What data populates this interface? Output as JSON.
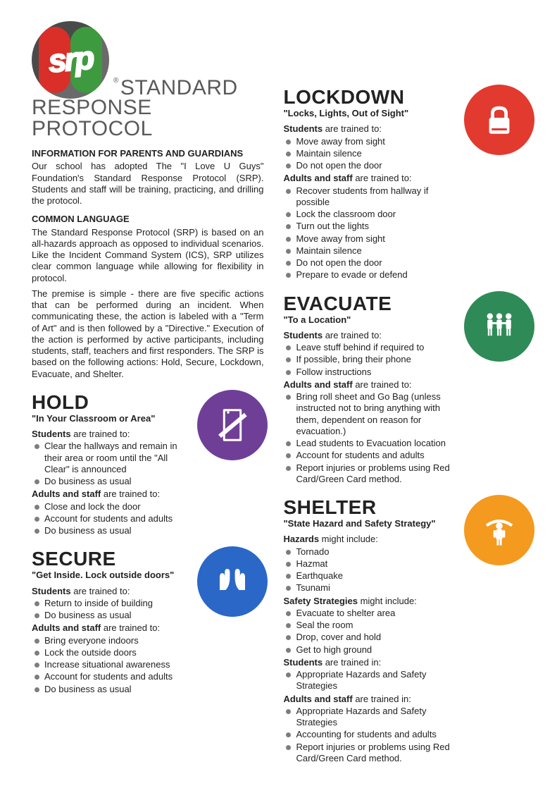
{
  "header": {
    "logo_text": "srp",
    "registered": "®",
    "title_line1": "STANDARD",
    "title_line2": "RESPONSE PROTOCOL"
  },
  "intro": {
    "heading1": "INFORMATION FOR PARENTS AND GUARDIANS",
    "para1": "Our school has adopted The \"I Love U Guys\" Foundation's Standard Response Protocol (SRP). Students and staff will be training, practicing, and drilling the protocol.",
    "heading2": "COMMON LANGUAGE",
    "para2": "The Standard Response Protocol (SRP) is based on an all-hazards approach as opposed to individual scenarios. Like the Incident Command System (ICS), SRP utilizes clear common language while allowing for flexibility in protocol.",
    "para3": "The premise is simple - there are five specific actions that can be performed during an incident. When communicating these, the action is labeled with a \"Term of Art\" and is then followed by a \"Directive.\" Execution of the action is performed by active participants, including students, staff, teachers and first responders. The SRP is based on the following actions: Hold, Secure, Lockdown, Evacuate, and Shelter."
  },
  "colors": {
    "hold": "#6f3f98",
    "secure": "#2b67c7",
    "lockdown": "#e23a2e",
    "evacuate": "#2e8b57",
    "shelter": "#f39a1f",
    "bullet": "#7d7d7d",
    "title_gray": "#5a5a5a"
  },
  "actions": {
    "hold": {
      "title": "HOLD",
      "directive": "\"In Your Classroom or Area\"",
      "groups": [
        {
          "label_bold": "Students",
          "label_rest": " are trained to:",
          "items": [
            "Clear the hallways and remain in their area or room until the \"All Clear\" is announced",
            "Do business as usual"
          ]
        },
        {
          "label_bold": "Adults and staff",
          "label_rest": " are trained to:",
          "items": [
            "Close and lock the door",
            "Account for students and adults",
            "Do business as usual"
          ]
        }
      ]
    },
    "secure": {
      "title": "SECURE",
      "directive": "\"Get Inside. Lock outside doors\"",
      "groups": [
        {
          "label_bold": "Students",
          "label_rest": " are trained to:",
          "items": [
            "Return to inside of building",
            "Do business as usual"
          ]
        },
        {
          "label_bold": "Adults and staff",
          "label_rest": " are trained to:",
          "items": [
            "Bring everyone indoors",
            "Lock the outside doors",
            "Increase situational awareness",
            "Account for students and adults",
            "Do business as usual"
          ]
        }
      ]
    },
    "lockdown": {
      "title": "LOCKDOWN",
      "directive": "\"Locks, Lights, Out of Sight\"",
      "groups": [
        {
          "label_bold": "Students",
          "label_rest": " are trained to:",
          "items": [
            "Move away from sight",
            "Maintain silence",
            "Do not open the door"
          ]
        },
        {
          "label_bold": "Adults and staff",
          "label_rest": " are trained to:",
          "items": [
            "Recover students from hallway if possible",
            "Lock the classroom door",
            "Turn out the lights",
            "Move away from sight",
            "Maintain silence",
            "Do not open the door",
            "Prepare to evade or defend"
          ]
        }
      ]
    },
    "evacuate": {
      "title": "EVACUATE",
      "directive": "\"To a Location\"",
      "groups": [
        {
          "label_bold": "Students",
          "label_rest": " are trained to:",
          "items": [
            "Leave stuff behind if required to",
            "If possible, bring their phone",
            "Follow instructions"
          ]
        },
        {
          "label_bold": "Adults and staff",
          "label_rest": " are trained to:",
          "items": [
            "Bring roll sheet and Go Bag (unless instructed not to bring anything with them, dependent on reason for evacuation.)",
            "Lead students to Evacuation location",
            "Account for students and adults",
            "Report injuries or problems using Red Card/Green Card method."
          ]
        }
      ]
    },
    "shelter": {
      "title": "SHELTER",
      "directive": "\"State Hazard and Safety Strategy\"",
      "groups": [
        {
          "label_bold": "Hazards",
          "label_rest": " might include:",
          "items": [
            "Tornado",
            "Hazmat",
            "Earthquake",
            "Tsunami"
          ]
        },
        {
          "label_bold": "Safety Strategies",
          "label_rest": " might include:",
          "items": [
            "Evacuate to shelter area",
            "Seal the room",
            "Drop, cover and hold",
            "Get to high ground"
          ]
        },
        {
          "label_bold": "Students",
          "label_rest": " are trained in:",
          "items": [
            "Appropriate Hazards and Safety Strategies"
          ]
        },
        {
          "label_bold": "Adults and staff",
          "label_rest": " are trained in:",
          "items": [
            "Appropriate Hazards and Safety Strategies",
            "Accounting for students and adults",
            "Report injuries or problems  using Red Card/Green Card method."
          ]
        }
      ]
    }
  },
  "icons": {
    "hold": "door-slash-icon",
    "secure": "hands-icon",
    "lockdown": "padlock-icon",
    "evacuate": "people-chain-icon",
    "shelter": "roof-person-icon"
  }
}
